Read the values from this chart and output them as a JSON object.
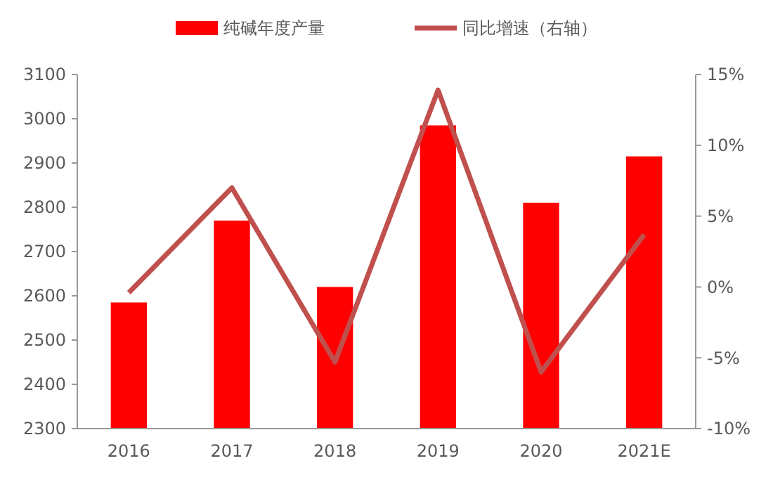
{
  "chart_data": {
    "type": "bar",
    "categories": [
      "2016",
      "2017",
      "2018",
      "2019",
      "2020",
      "2021E"
    ],
    "series": [
      {
        "name": "纯碱年度产量",
        "color": "#ff0000",
        "values": [
          2585,
          2770,
          2620,
          2985,
          2810,
          2915
        ]
      },
      {
        "name": "同比增速（右轴）",
        "type": "line",
        "axis": "y2",
        "color": "#c0504d",
        "values": [
          -0.4,
          7.0,
          -5.3,
          13.9,
          -6.0,
          3.7
        ]
      }
    ],
    "ylim": [
      2300,
      3100
    ],
    "yticks": [
      2300,
      2400,
      2500,
      2600,
      2700,
      2800,
      2900,
      3000,
      3100
    ],
    "y2lim": [
      -10,
      15
    ],
    "y2ticks": [
      {
        "value": -10,
        "label": "-10%"
      },
      {
        "value": -5,
        "label": "-5%"
      },
      {
        "value": 0,
        "label": "0%"
      },
      {
        "value": 5,
        "label": "5%"
      },
      {
        "value": 10,
        "label": "10%"
      },
      {
        "value": 15,
        "label": "15%"
      }
    ],
    "legend": "top",
    "grid": false,
    "marker": "none",
    "line_style": "solid"
  }
}
